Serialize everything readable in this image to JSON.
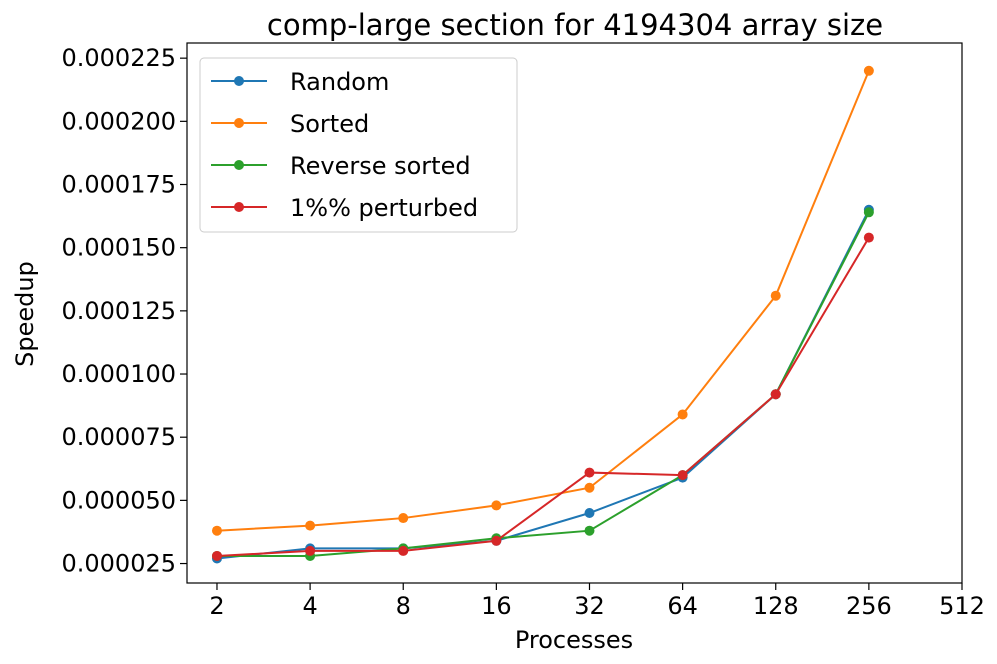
{
  "chart_data": {
    "type": "line",
    "title": "comp-large section for 4194304 array size",
    "xlabel": "Processes",
    "ylabel": "Speedup",
    "x_scale": "log2",
    "x": [
      2,
      4,
      8,
      16,
      32,
      64,
      128,
      256
    ],
    "x_ticks": [
      "2",
      "4",
      "8",
      "16",
      "32",
      "64",
      "128",
      "256",
      "512"
    ],
    "y_ticks": [
      "0.000025",
      "0.000050",
      "0.000075",
      "0.000100",
      "0.000125",
      "0.000150",
      "0.000175",
      "0.000200",
      "0.000225"
    ],
    "y_tick_values": [
      2.5e-05,
      5e-05,
      7.5e-05,
      0.0001,
      0.000125,
      0.00015,
      0.000175,
      0.0002,
      0.000225
    ],
    "xlim": [
      1.6,
      512
    ],
    "ylim": [
      1.73e-05,
      0.000231
    ],
    "grid": false,
    "legend_position": "top-left",
    "series": [
      {
        "name": "Random",
        "color": "#1f77b4",
        "values": [
          2.7e-05,
          3.1e-05,
          3.1e-05,
          3.4e-05,
          4.5e-05,
          5.9e-05,
          9.2e-05,
          0.000165
        ]
      },
      {
        "name": "Sorted",
        "color": "#ff7f0e",
        "values": [
          3.8e-05,
          4e-05,
          4.3e-05,
          4.8e-05,
          5.5e-05,
          8.4e-05,
          0.000131,
          0.00022
        ]
      },
      {
        "name": "Reverse sorted",
        "color": "#2ca02c",
        "values": [
          2.8e-05,
          2.8e-05,
          3.1e-05,
          3.5e-05,
          3.8e-05,
          6e-05,
          9.2e-05,
          0.000164
        ]
      },
      {
        "name": "1%% perturbed",
        "color": "#d62728",
        "values": [
          2.8e-05,
          3e-05,
          3e-05,
          3.4e-05,
          6.1e-05,
          6e-05,
          9.2e-05,
          0.000154
        ]
      }
    ]
  }
}
